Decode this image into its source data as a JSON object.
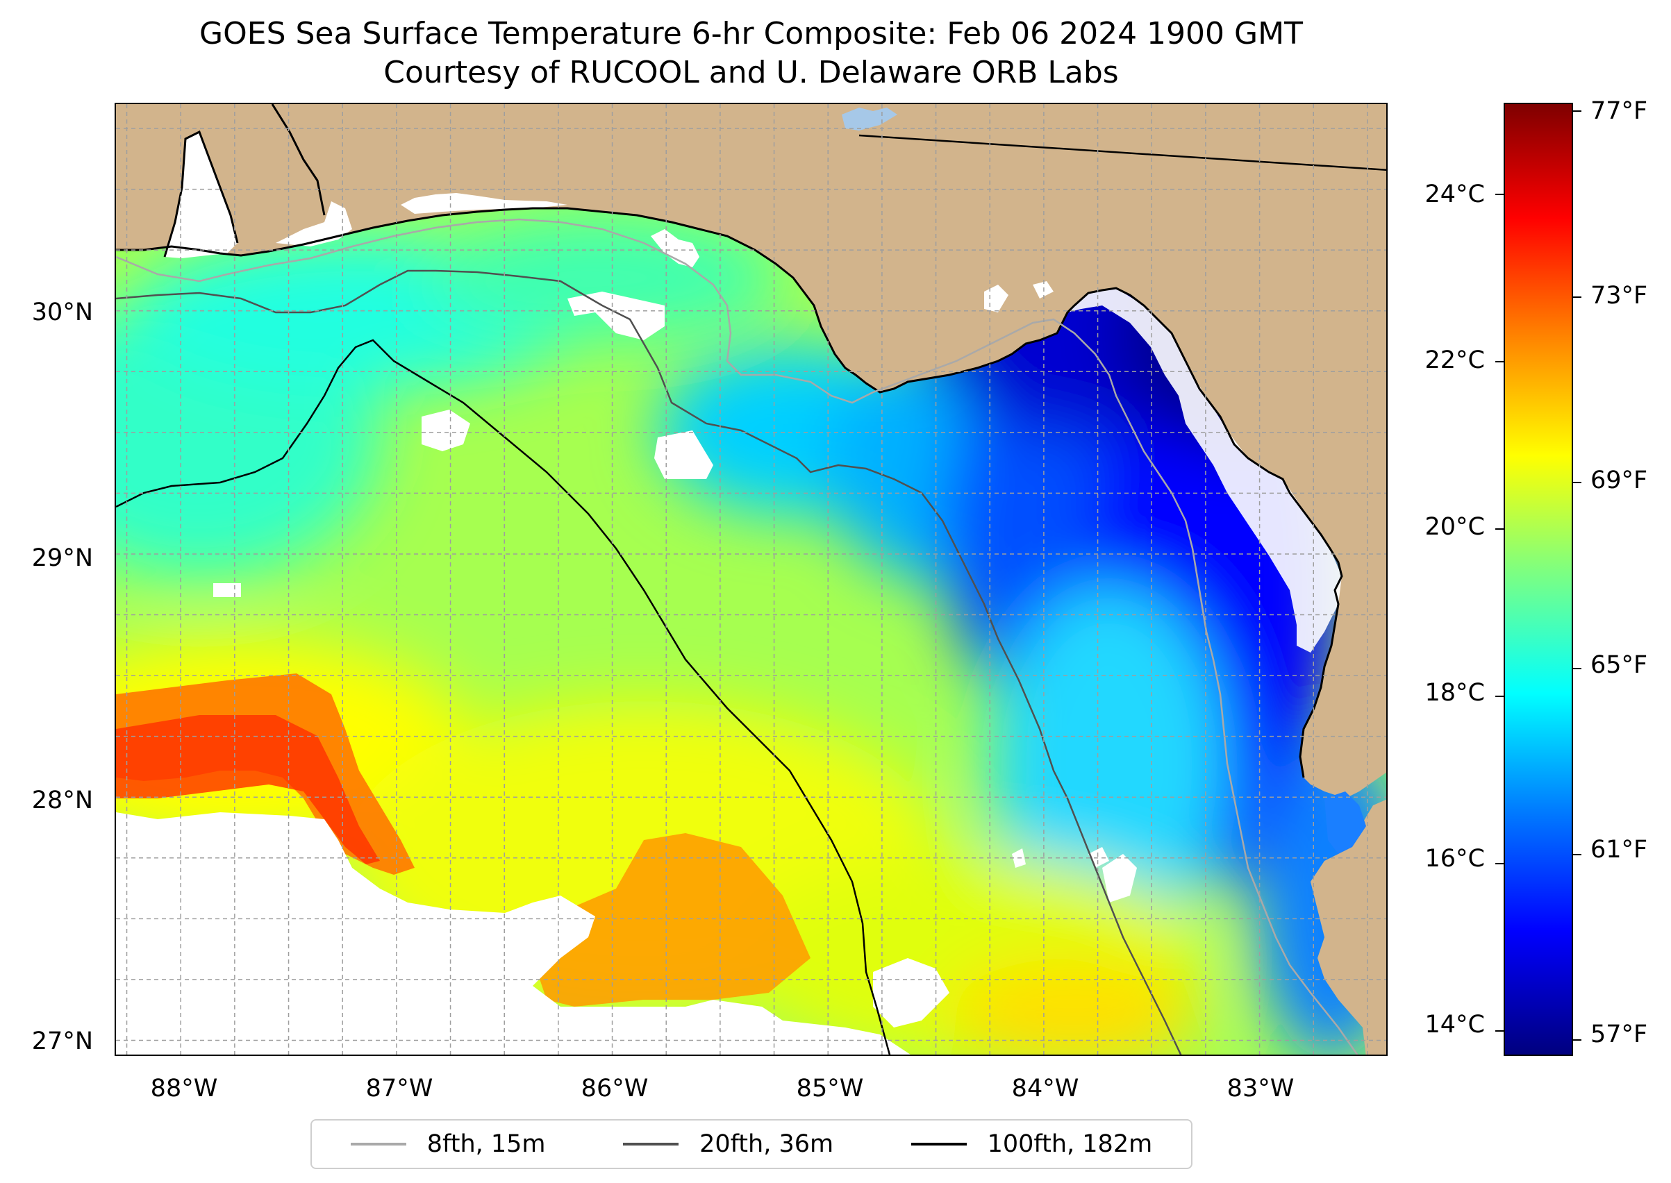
{
  "map": {
    "title_line1": "GOES Sea Surface Temperature 6-hr Composite: Feb 06 2024 1900 GMT",
    "title_line2": "Courtesy of RUCOOL and U. Delaware ORB Labs",
    "region": "Northeastern Gulf of Mexico / Florida Big Bend",
    "longitude_ticks": [
      "88°W",
      "87°W",
      "86°W",
      "85°W",
      "84°W",
      "83°W"
    ],
    "latitude_ticks": [
      "30°N",
      "29°N",
      "28°N",
      "27°N"
    ],
    "lon_range": [
      -88.3,
      -82.4
    ],
    "lat_range": [
      26.93,
      30.85
    ],
    "colors": {
      "land": "#d2b48c",
      "no_data": "#ffffff",
      "isobath_8fth": "#a9a9a9",
      "isobath_20fth": "#505050",
      "isobath_100fth": "#000000",
      "grid": "#9e9e9e"
    }
  },
  "colorbar": {
    "celsius_ticks": [
      "24°C",
      "22°C",
      "20°C",
      "18°C",
      "16°C",
      "14°C"
    ],
    "fahrenheit_ticks": [
      "77°F",
      "73°F",
      "69°F",
      "65°F",
      "61°F",
      "57°F"
    ],
    "celsius_range": [
      13.7,
      25.1
    ],
    "colormap": "jet"
  },
  "legend": {
    "entries": [
      {
        "label": "8fth, 15m",
        "color": "#a9a9a9"
      },
      {
        "label": "20fth, 36m",
        "color": "#505050"
      },
      {
        "label": "100fth, 182m",
        "color": "#000000"
      }
    ]
  }
}
